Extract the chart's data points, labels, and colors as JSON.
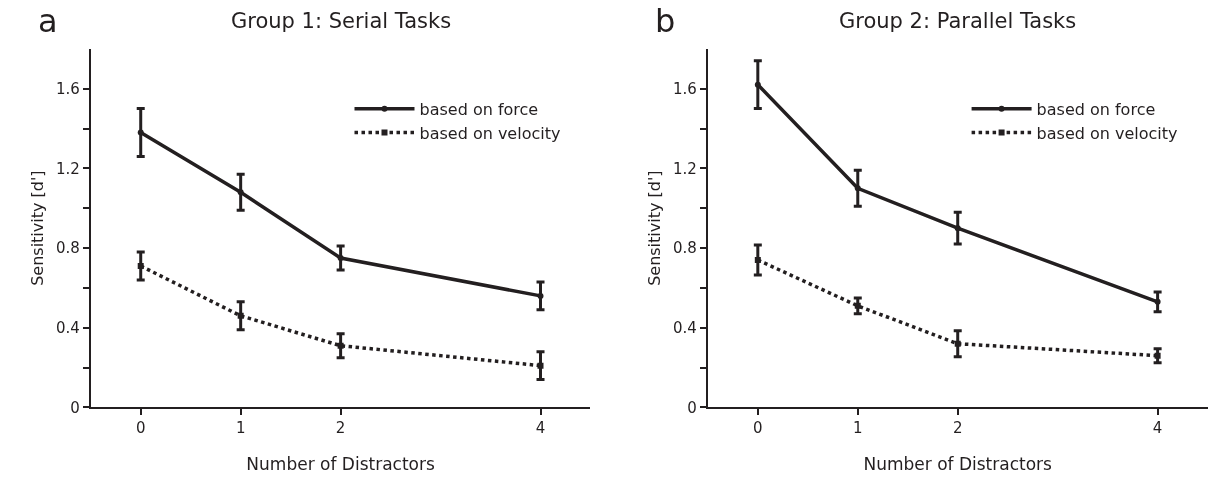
{
  "chart_data": [
    {
      "type": "line",
      "title": "Group 1: Serial Tasks",
      "xlabel": "Number of Distractors",
      "ylabel": "Sensitivity [d']",
      "annotations": [
        "a"
      ],
      "x": [
        0,
        1,
        2,
        4
      ],
      "xlim": [
        -0.5,
        4.5
      ],
      "xticks": [
        0,
        1,
        2,
        4
      ],
      "ylim": [
        0,
        1.8
      ],
      "yticks": [
        0,
        {
          "value": 0.2,
          "label": null
        },
        0.4,
        {
          "value": 0.6,
          "label": null
        },
        0.8,
        {
          "value": 1.0,
          "label": null
        },
        1.2,
        {
          "value": 1.4,
          "label": null
        },
        1.6
      ],
      "legend": "top right",
      "series": [
        {
          "name": "based on force",
          "color": "#231f20",
          "line_style": "solid",
          "marker": "circle",
          "values": [
            1.38,
            1.08,
            0.75,
            0.56
          ],
          "errors": [
            0.12,
            0.09,
            0.06,
            0.07
          ]
        },
        {
          "name": "based on velocity",
          "color": "#231f20",
          "line_style": "dotted",
          "marker": "square",
          "values": [
            0.71,
            0.46,
            0.31,
            0.21
          ],
          "errors": [
            0.07,
            0.07,
            0.06,
            0.07
          ]
        }
      ]
    },
    {
      "type": "line",
      "title": "Group 2: Parallel Tasks",
      "xlabel": "Number of Distractors",
      "ylabel": "Sensitivity [d']",
      "annotations": [
        "b"
      ],
      "x": [
        0,
        1,
        2,
        4
      ],
      "xlim": [
        -0.5,
        4.5
      ],
      "xticks": [
        0,
        1,
        2,
        4
      ],
      "ylim": [
        0,
        1.8
      ],
      "yticks": [
        0,
        {
          "value": 0.2,
          "label": null
        },
        0.4,
        {
          "value": 0.6,
          "label": null
        },
        0.8,
        {
          "value": 1.0,
          "label": null
        },
        1.2,
        {
          "value": 1.4,
          "label": null
        },
        1.6
      ],
      "legend": "top right",
      "series": [
        {
          "name": "based on force",
          "color": "#231f20",
          "line_style": "solid",
          "marker": "circle",
          "values": [
            1.62,
            1.1,
            0.9,
            0.53
          ],
          "errors": [
            0.12,
            0.09,
            0.08,
            0.05
          ]
        },
        {
          "name": "based on velocity",
          "color": "#231f20",
          "line_style": "dotted",
          "marker": "square",
          "values": [
            0.74,
            0.51,
            0.32,
            0.26
          ],
          "errors": [
            0.075,
            0.04,
            0.065,
            0.035
          ]
        }
      ]
    }
  ]
}
